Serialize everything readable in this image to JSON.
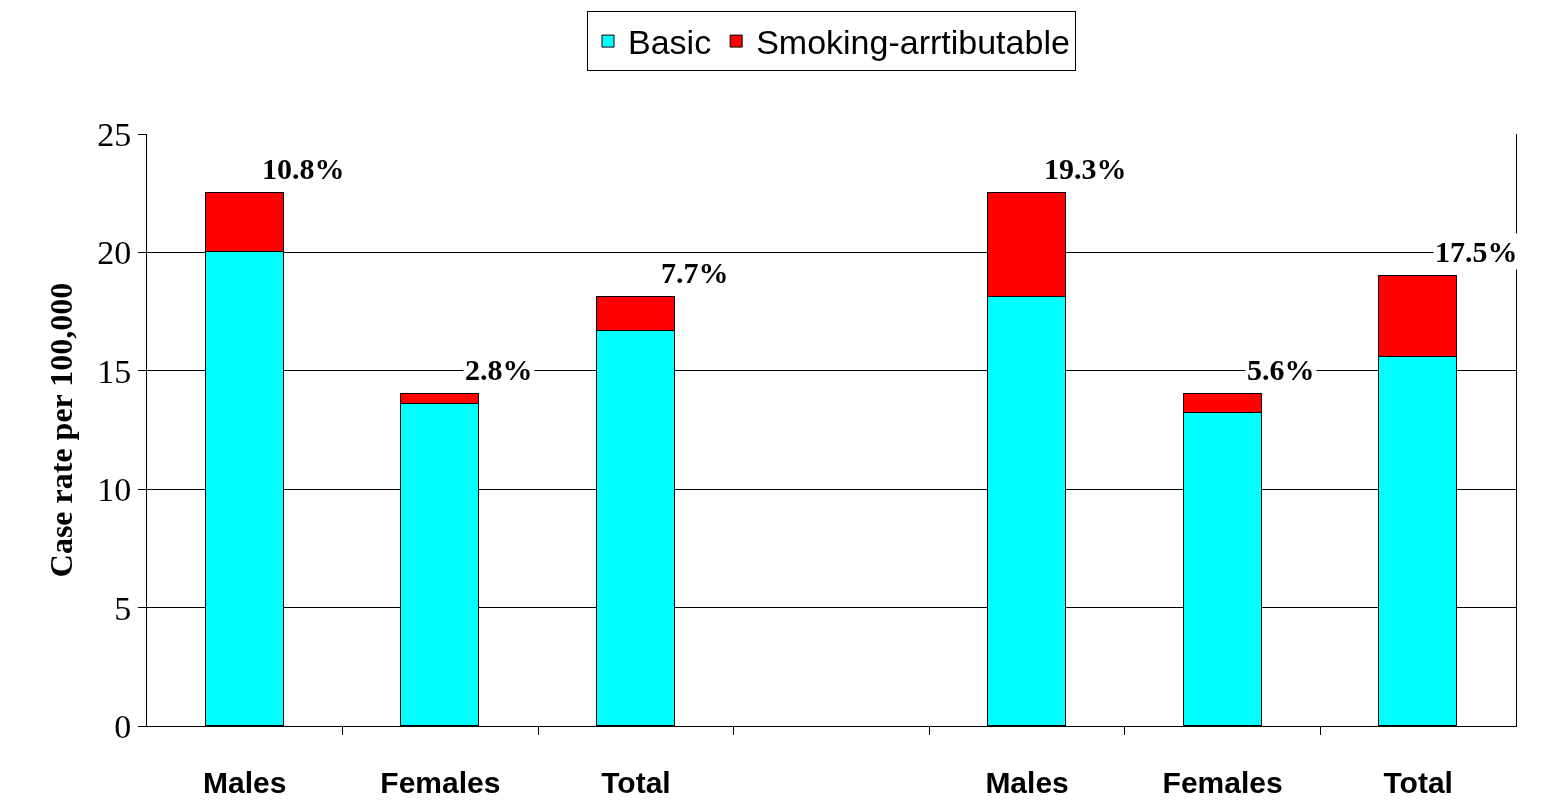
{
  "chart_data": {
    "type": "bar",
    "stacked": true,
    "ylabel": "Case rate per 100,000",
    "categories": [
      "Males",
      "Females",
      "Total",
      null,
      "Males",
      "Females",
      "Total"
    ],
    "series": [
      {
        "name": "Basic",
        "color": "#00ffff",
        "values": [
          20.0,
          13.6,
          16.7,
          null,
          18.1,
          13.2,
          15.6
        ]
      },
      {
        "name": "Smoking-arrtibutable",
        "color": "#ff0000",
        "values": [
          2.5,
          0.4,
          1.4,
          null,
          4.4,
          0.8,
          3.4
        ]
      }
    ],
    "annotations": [
      "10.8%",
      "2.8%",
      "7.7%",
      "19.3%",
      "5.6%",
      "17.5%"
    ],
    "ylim": [
      0,
      25
    ],
    "yticks": [
      0,
      5,
      10,
      15,
      20,
      25
    ],
    "grid": "y",
    "legend": "top"
  }
}
